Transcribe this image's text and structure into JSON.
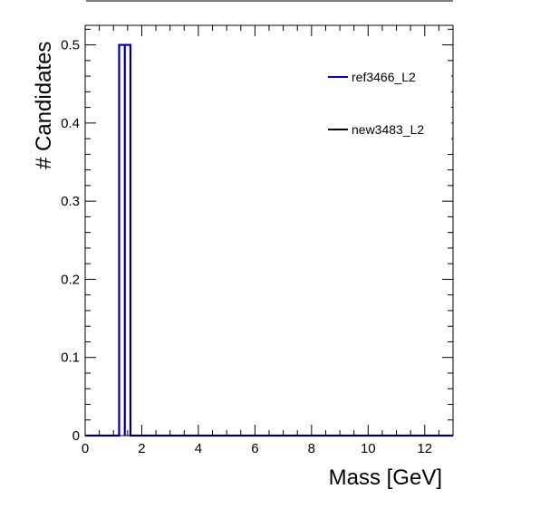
{
  "chart_data": {
    "type": "step-histogram",
    "xlabel": "Mass [GeV]",
    "ylabel": "# Candidates",
    "xlim": [
      0,
      13
    ],
    "ylim": [
      0,
      0.525
    ],
    "x_ticks": [
      0,
      2,
      4,
      6,
      8,
      10,
      12
    ],
    "x_tick_labels": [
      "0",
      "2",
      "4",
      "6",
      "8",
      "10",
      "12"
    ],
    "y_ticks": [
      0,
      0.1,
      0.2,
      0.3,
      0.4,
      0.5
    ],
    "y_tick_labels": [
      "0",
      "0.1",
      "0.2",
      "0.3",
      "0.4",
      "0.5"
    ],
    "legend_position": "top-right",
    "series": [
      {
        "name": "ref3466_L2",
        "color": "#0000cc",
        "bins": [
          {
            "low": 1.2,
            "high": 1.4,
            "value": 0.5
          },
          {
            "low": 1.4,
            "high": 1.6,
            "value": 0.5
          }
        ]
      },
      {
        "name": "new3483_L2",
        "color": "#000000",
        "bins": [
          {
            "low": 1.2,
            "high": 1.4,
            "value": 0.5
          },
          {
            "low": 1.4,
            "high": 1.6,
            "value": 0.5
          }
        ]
      }
    ]
  }
}
